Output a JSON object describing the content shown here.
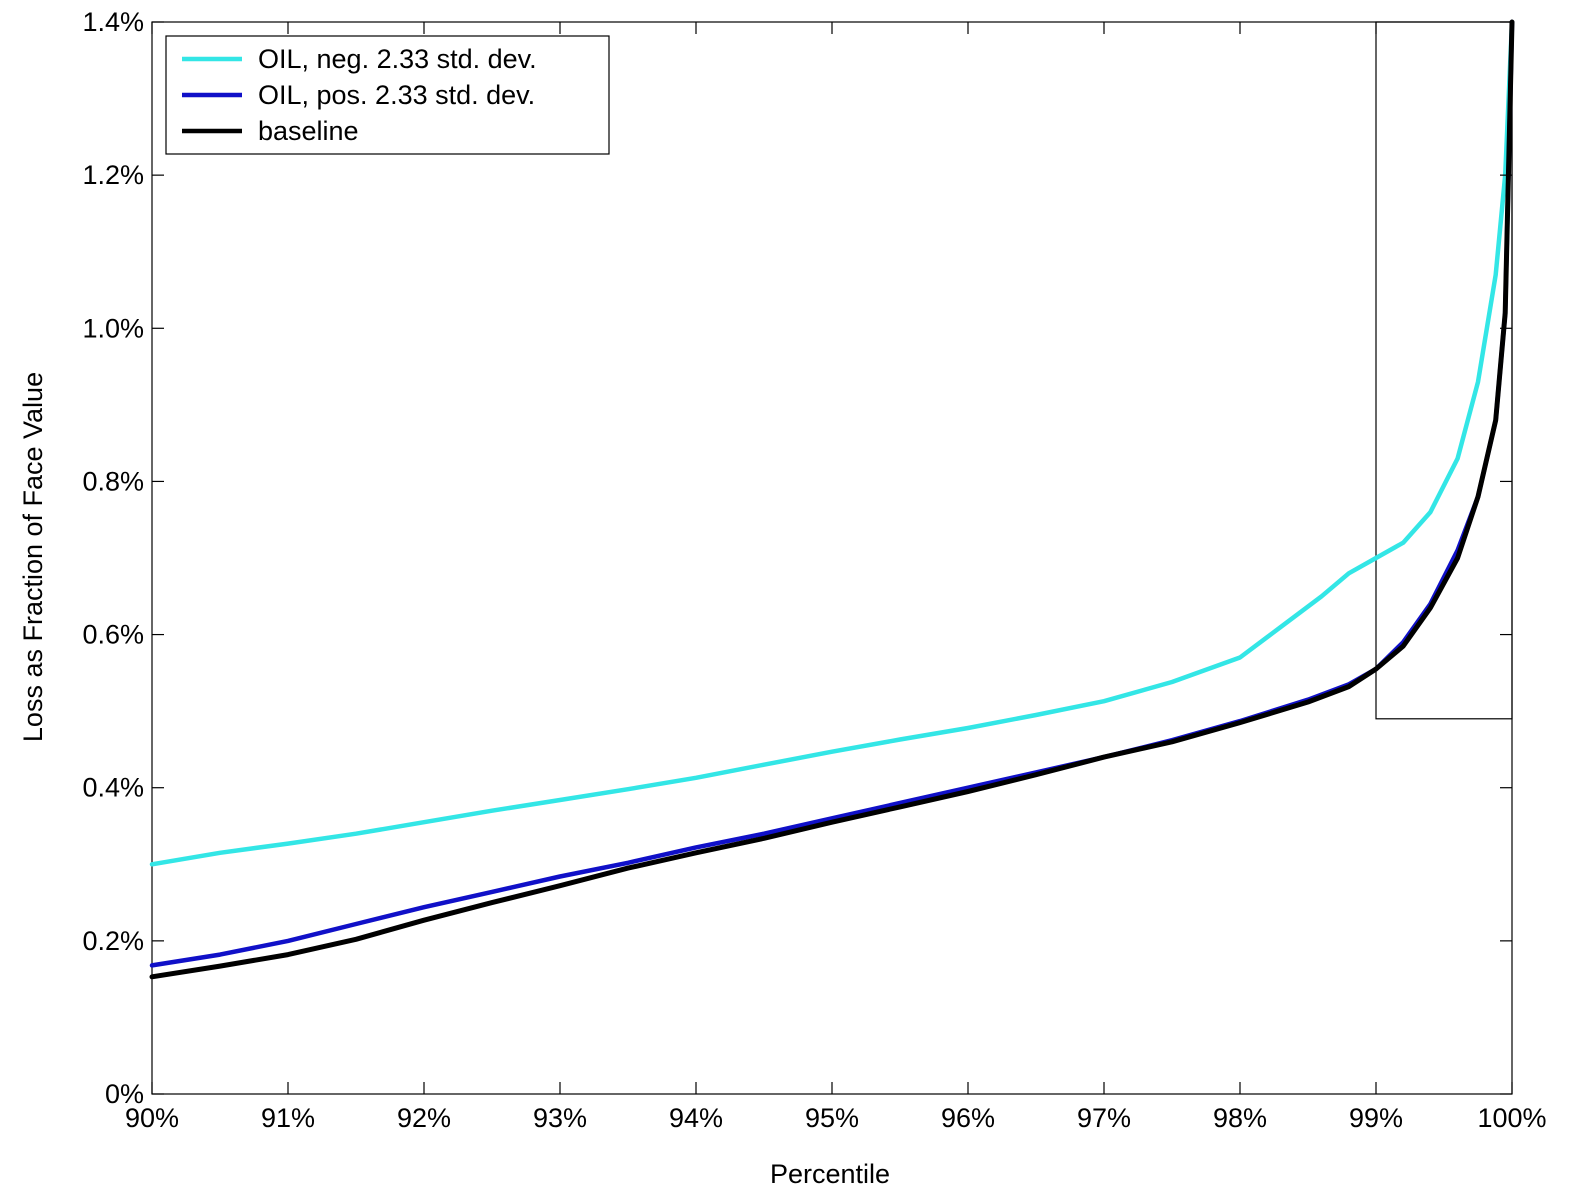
{
  "chart_data": {
    "type": "line",
    "title": "",
    "xlabel": "Percentile",
    "ylabel": "Loss as Fraction of Face Value",
    "xlim": [
      90,
      100
    ],
    "ylim": [
      0,
      1.4
    ],
    "x_ticks": [
      "90%",
      "91%",
      "92%",
      "93%",
      "94%",
      "95%",
      "96%",
      "97%",
      "98%",
      "99%",
      "100%"
    ],
    "y_ticks": [
      "0%",
      "0.2%",
      "0.4%",
      "0.6%",
      "0.8%",
      "1.0%",
      "1.2%",
      "1.4%"
    ],
    "grid": false,
    "legend_position": "top-left",
    "inset_box": {
      "x": [
        99,
        100
      ],
      "y": [
        0.49,
        1.4
      ]
    },
    "series": [
      {
        "name": "OIL, neg. 2.33 std. dev.",
        "color": "#33e6e6",
        "points": [
          [
            90,
            0.3
          ],
          [
            90.5,
            0.315
          ],
          [
            91,
            0.327
          ],
          [
            91.5,
            0.34
          ],
          [
            92,
            0.355
          ],
          [
            92.5,
            0.37
          ],
          [
            93,
            0.384
          ],
          [
            93.5,
            0.398
          ],
          [
            94,
            0.413
          ],
          [
            94.5,
            0.43
          ],
          [
            95,
            0.447
          ],
          [
            95.5,
            0.463
          ],
          [
            96,
            0.478
          ],
          [
            96.5,
            0.495
          ],
          [
            97,
            0.513
          ],
          [
            97.5,
            0.538
          ],
          [
            98,
            0.57
          ],
          [
            98.3,
            0.61
          ],
          [
            98.6,
            0.65
          ],
          [
            98.8,
            0.68
          ],
          [
            99,
            0.7
          ],
          [
            99.2,
            0.72
          ],
          [
            99.4,
            0.76
          ],
          [
            99.6,
            0.83
          ],
          [
            99.75,
            0.93
          ],
          [
            99.88,
            1.07
          ],
          [
            99.95,
            1.2
          ],
          [
            100,
            1.4
          ]
        ]
      },
      {
        "name": "OIL, pos. 2.33 std. dev.",
        "color": "#1010c8",
        "points": [
          [
            90,
            0.168
          ],
          [
            90.5,
            0.182
          ],
          [
            91,
            0.2
          ],
          [
            91.5,
            0.222
          ],
          [
            92,
            0.244
          ],
          [
            92.5,
            0.264
          ],
          [
            93,
            0.284
          ],
          [
            93.5,
            0.302
          ],
          [
            94,
            0.322
          ],
          [
            94.5,
            0.34
          ],
          [
            95,
            0.36
          ],
          [
            95.5,
            0.38
          ],
          [
            96,
            0.4
          ],
          [
            96.5,
            0.42
          ],
          [
            97,
            0.44
          ],
          [
            97.5,
            0.462
          ],
          [
            98,
            0.487
          ],
          [
            98.5,
            0.515
          ],
          [
            98.8,
            0.535
          ],
          [
            99,
            0.555
          ],
          [
            99.2,
            0.59
          ],
          [
            99.4,
            0.64
          ],
          [
            99.6,
            0.71
          ],
          [
            99.75,
            0.78
          ],
          [
            99.88,
            0.88
          ],
          [
            99.95,
            1.02
          ],
          [
            100,
            1.4
          ]
        ]
      },
      {
        "name": "baseline",
        "color": "#000000",
        "points": [
          [
            90,
            0.153
          ],
          [
            90.5,
            0.167
          ],
          [
            91,
            0.182
          ],
          [
            91.5,
            0.202
          ],
          [
            92,
            0.227
          ],
          [
            92.5,
            0.25
          ],
          [
            93,
            0.272
          ],
          [
            93.5,
            0.295
          ],
          [
            94,
            0.315
          ],
          [
            94.5,
            0.334
          ],
          [
            95,
            0.355
          ],
          [
            95.5,
            0.375
          ],
          [
            96,
            0.395
          ],
          [
            96.5,
            0.417
          ],
          [
            97,
            0.44
          ],
          [
            97.5,
            0.46
          ],
          [
            98,
            0.485
          ],
          [
            98.5,
            0.512
          ],
          [
            98.8,
            0.532
          ],
          [
            99,
            0.555
          ],
          [
            99.2,
            0.585
          ],
          [
            99.4,
            0.635
          ],
          [
            99.6,
            0.7
          ],
          [
            99.75,
            0.78
          ],
          [
            99.88,
            0.88
          ],
          [
            99.95,
            1.02
          ],
          [
            100,
            1.4
          ]
        ]
      }
    ]
  }
}
